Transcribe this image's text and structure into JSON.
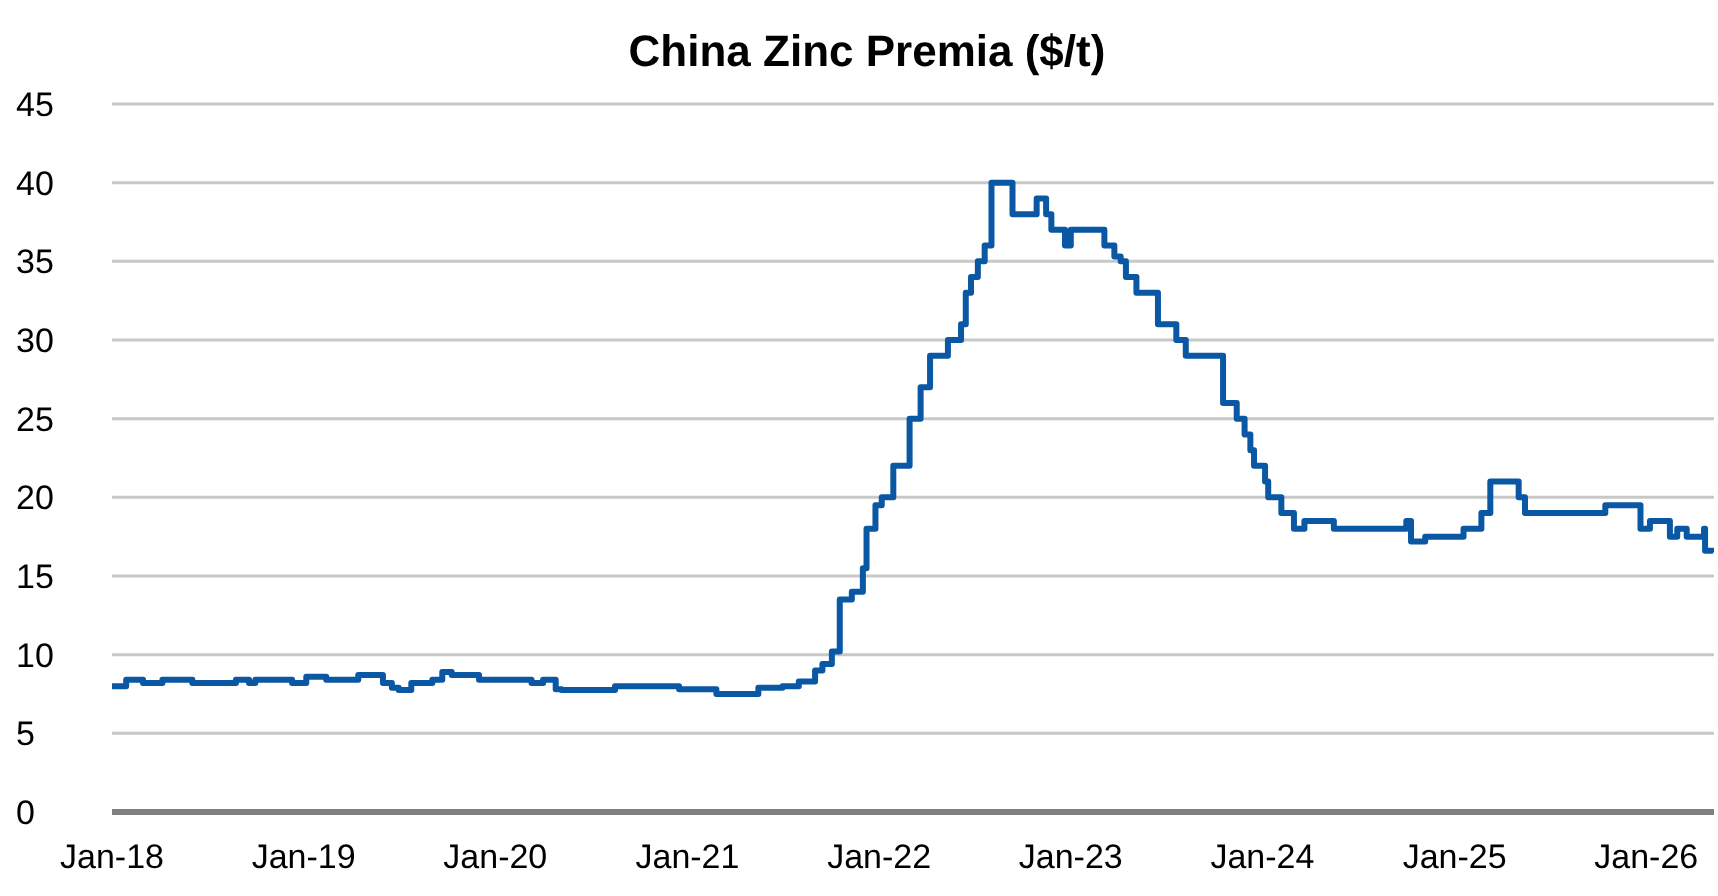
{
  "chart_data": {
    "type": "step",
    "title": "China Zinc Premia ($/t)",
    "x": [
      "2018-01-01",
      "2018-01-28",
      "2018-03-01",
      "2018-04-07",
      "2018-06-03",
      "2018-08-25",
      "2018-09-19",
      "2018-10-01",
      "2018-12-10",
      "2019-01-06",
      "2019-02-13",
      "2019-04-15",
      "2019-06-01",
      "2019-06-18",
      "2019-07-01",
      "2019-07-25",
      "2019-09-03",
      "2019-09-22",
      "2019-10-10",
      "2019-12-01",
      "2020-03-10",
      "2020-04-01",
      "2020-04-25",
      "2020-05-06",
      "2020-08-16",
      "2020-12-16",
      "2021-02-25",
      "2021-05-16",
      "2021-07-01",
      "2021-08-01",
      "2021-09-01",
      "2021-09-15",
      "2021-10-03",
      "2021-10-18",
      "2021-11-10",
      "2021-12-01",
      "2021-12-08",
      "2021-12-25",
      "2022-01-06",
      "2022-01-28",
      "2022-02-28",
      "2022-03-21",
      "2022-04-08",
      "2022-05-12",
      "2022-06-06",
      "2022-06-15",
      "2022-06-25",
      "2022-07-08",
      "2022-07-21",
      "2022-08-03",
      "2022-09-12",
      "2022-10-28",
      "2022-11-15",
      "2022-11-25",
      "2022-12-21",
      "2023-01-01",
      "2023-03-06",
      "2023-03-25",
      "2023-04-06",
      "2023-04-16",
      "2023-05-06",
      "2023-06-16",
      "2023-07-21",
      "2023-08-08",
      "2023-10-18",
      "2023-11-13",
      "2023-11-28",
      "2023-12-09",
      "2023-12-16",
      "2024-01-06",
      "2024-01-12",
      "2024-02-06",
      "2024-03-01",
      "2024-03-21",
      "2024-05-16",
      "2024-10-01",
      "2024-10-10",
      "2024-11-06",
      "2025-01-18",
      "2025-02-21",
      "2025-03-10",
      "2025-05-03",
      "2025-05-15",
      "2025-10-15",
      "2025-12-21",
      "2026-01-08",
      "2026-02-15",
      "2026-03-01",
      "2026-03-19",
      "2026-04-21",
      "2026-04-23",
      "2026-05-08"
    ],
    "series": [
      {
        "color": "#0a57a4",
        "values": [
          8.0,
          8.4,
          8.2,
          8.4,
          8.2,
          8.4,
          8.2,
          8.4,
          8.2,
          8.6,
          8.4,
          8.7,
          8.2,
          7.9,
          7.75,
          8.2,
          8.4,
          8.9,
          8.7,
          8.4,
          8.2,
          8.4,
          7.8,
          7.75,
          8.0,
          7.8,
          7.5,
          7.9,
          8.0,
          8.3,
          9.0,
          9.4,
          10.2,
          13.5,
          14,
          15.5,
          18,
          19.5,
          20,
          22,
          25,
          27,
          29,
          30,
          31,
          33,
          34,
          35,
          36,
          40,
          38,
          39,
          38,
          37,
          36,
          37,
          36,
          35.3,
          35,
          34,
          33,
          31,
          30,
          29,
          26,
          25,
          24,
          23,
          22,
          21,
          20,
          19,
          18,
          18.5,
          18,
          18.5,
          17.2,
          17.5,
          18,
          19,
          21,
          20,
          19,
          19.5,
          18,
          18.5,
          17.5,
          18,
          17.5,
          18,
          16.6,
          16.5
        ]
      }
    ],
    "xlim": [
      "2018-01-01",
      "2026-05-10"
    ],
    "xticks": [
      {
        "value": "2018-01-01",
        "label": "Jan-18"
      },
      {
        "value": "2019-01-01",
        "label": "Jan-19"
      },
      {
        "value": "2020-01-01",
        "label": "Jan-20"
      },
      {
        "value": "2021-01-01",
        "label": "Jan-21"
      },
      {
        "value": "2022-01-01",
        "label": "Jan-22"
      },
      {
        "value": "2023-01-01",
        "label": "Jan-23"
      },
      {
        "value": "2024-01-01",
        "label": "Jan-24"
      },
      {
        "value": "2025-01-01",
        "label": "Jan-25"
      },
      {
        "value": "2026-01-01",
        "label": "Jan-26"
      }
    ],
    "ylim": [
      0,
      45
    ],
    "yticks": [
      0,
      5,
      10,
      15,
      20,
      25,
      30,
      35,
      40,
      45
    ],
    "grid": "y",
    "line_style": "solid"
  }
}
